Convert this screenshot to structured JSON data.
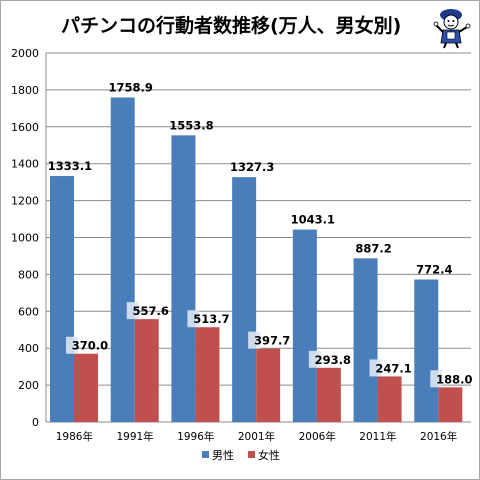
{
  "title": "パチンコの行動者数推移(万人、男女別)",
  "colors": {
    "male": "#4a7ebb",
    "female": "#c0504d",
    "grid": "#8c8c8c",
    "label_bg": "#dbe5f1"
  },
  "mascot": {
    "icon": "mascot-figure-icon"
  },
  "chart_data": {
    "type": "bar",
    "title": "パチンコの行動者数推移(万人、男女別)",
    "xlabel": "",
    "ylabel": "",
    "categories": [
      "1986年",
      "1991年",
      "1996年",
      "2001年",
      "2006年",
      "2011年",
      "2016年"
    ],
    "series": [
      {
        "name": "男性",
        "values": [
          1333.1,
          1758.9,
          1553.8,
          1327.3,
          1043.1,
          887.2,
          772.4
        ]
      },
      {
        "name": "女性",
        "values": [
          370.0,
          557.6,
          513.7,
          397.7,
          293.8,
          247.1,
          188.0
        ]
      }
    ],
    "ylim": [
      0,
      2000
    ],
    "yticks": [
      0,
      200,
      400,
      600,
      800,
      1000,
      1200,
      1400,
      1600,
      1800,
      2000
    ],
    "value_labels": {
      "male": [
        "1333.1",
        "1758.9",
        "1553.8",
        "1327.3",
        "1043.1",
        "887.2",
        "772.4"
      ],
      "female": [
        "370.0",
        "557.6",
        "513.7",
        "397.7",
        "293.8",
        "247.1",
        "188.0"
      ]
    },
    "grid": true,
    "legend": "bottom"
  }
}
